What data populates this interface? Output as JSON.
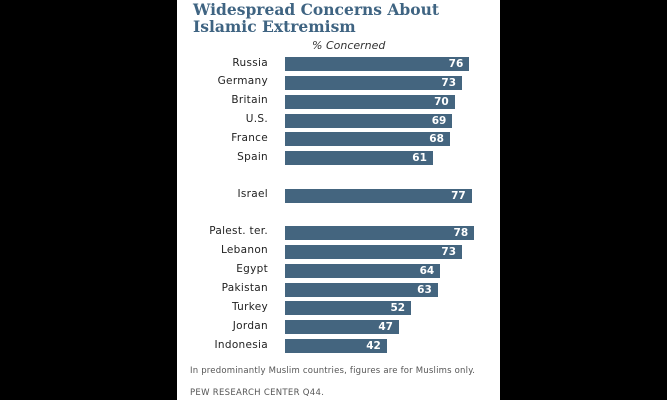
{
  "chart_data": {
    "type": "bar",
    "orientation": "horizontal",
    "title": "Widespread Concerns About Islamic Extremism",
    "subtitle": "% Concerned",
    "groups": [
      {
        "categories": [
          "Russia",
          "Germany",
          "Britain",
          "U.S.",
          "France",
          "Spain"
        ],
        "values": [
          76,
          73,
          70,
          69,
          68,
          61
        ]
      },
      {
        "categories": [
          "Israel"
        ],
        "values": [
          77
        ]
      },
      {
        "categories": [
          "Palest. ter.",
          "Lebanon",
          "Egypt",
          "Pakistan",
          "Turkey",
          "Jordan",
          "Indonesia"
        ],
        "values": [
          78,
          73,
          64,
          63,
          52,
          47,
          42
        ]
      }
    ],
    "xlim": [
      0,
      100
    ],
    "bar_color": "#44657f",
    "note": "In predominantly Muslim countries, figures are for Muslims only.",
    "source": "PEW RESEARCH  CENTER Q44."
  }
}
